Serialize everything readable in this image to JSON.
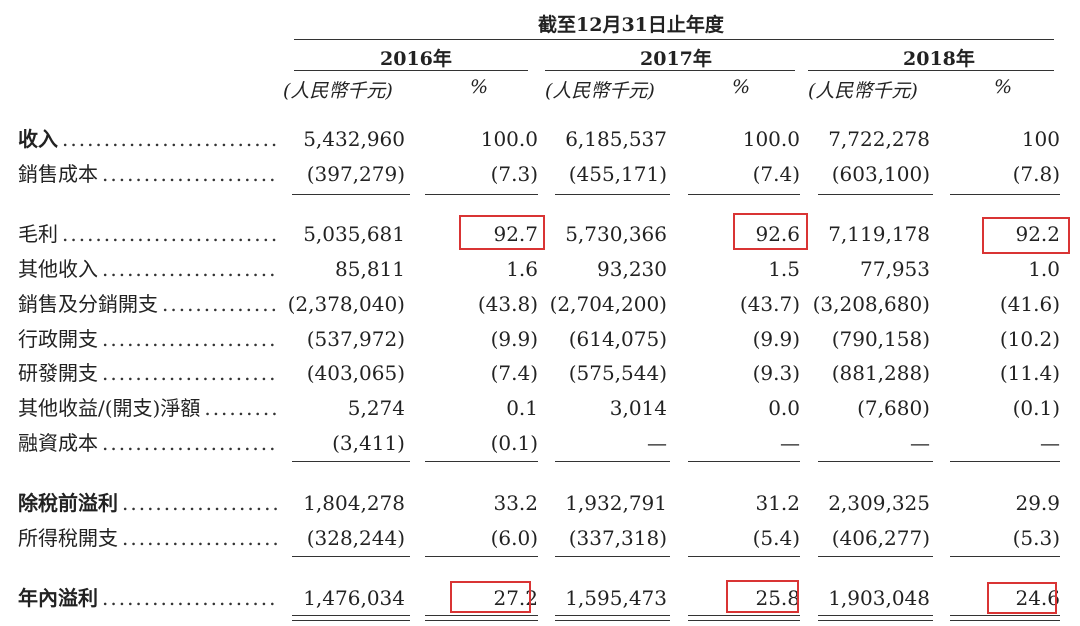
{
  "header": {
    "period_title": "截至12月31日止年度",
    "years": [
      "2016年",
      "2017年",
      "2018年"
    ],
    "unit_label": "(人民幣千元)",
    "pct_label": "%"
  },
  "rows": [
    {
      "label": "收入",
      "bold": true,
      "values": [
        "5,432,960",
        "100.0",
        "6,185,537",
        "100.0",
        "7,722,278",
        "100"
      ]
    },
    {
      "label": "銷售成本",
      "bold": false,
      "values": [
        "(397,279)",
        "(7.3)",
        "(455,171)",
        "(7.4)",
        "(603,100)",
        "(7.8)"
      ]
    },
    {
      "label": "毛利",
      "bold": false,
      "values": [
        "5,035,681",
        "92.7",
        "5,730,366",
        "92.6",
        "7,119,178",
        "92.2"
      ]
    },
    {
      "label": "其他收入",
      "bold": false,
      "values": [
        "85,811",
        "1.6",
        "93,230",
        "1.5",
        "77,953",
        "1.0"
      ]
    },
    {
      "label": "銷售及分銷開支",
      "bold": false,
      "values": [
        "(2,378,040)",
        "(43.8)",
        "(2,704,200)",
        "(43.7)",
        "(3,208,680)",
        "(41.6)"
      ]
    },
    {
      "label": "行政開支",
      "bold": false,
      "values": [
        "(537,972)",
        "(9.9)",
        "(614,075)",
        "(9.9)",
        "(790,158)",
        "(10.2)"
      ]
    },
    {
      "label": "研發開支",
      "bold": false,
      "values": [
        "(403,065)",
        "(7.4)",
        "(575,544)",
        "(9.3)",
        "(881,288)",
        "(11.4)"
      ]
    },
    {
      "label": "其他收益/(開支)淨額",
      "bold": false,
      "values": [
        "5,274",
        "0.1",
        "3,014",
        "0.0",
        "(7,680)",
        "(0.1)"
      ]
    },
    {
      "label": "融資成本",
      "bold": false,
      "values": [
        "(3,411)",
        "(0.1)",
        "—",
        "—",
        "—",
        "—"
      ]
    },
    {
      "label": "除稅前溢利",
      "bold": true,
      "values": [
        "1,804,278",
        "33.2",
        "1,932,791",
        "31.2",
        "2,309,325",
        "29.9"
      ]
    },
    {
      "label": "所得稅開支",
      "bold": false,
      "values": [
        "(328,244)",
        "(6.0)",
        "(337,318)",
        "(5.4)",
        "(406,277)",
        "(5.3)"
      ]
    },
    {
      "label": "年內溢利",
      "bold": true,
      "values": [
        "1,476,034",
        "27.2",
        "1,595,473",
        "25.8",
        "1,903,048",
        "24.6"
      ]
    }
  ],
  "colors": {
    "highlight_box": "#d93434",
    "text": "#222222"
  }
}
